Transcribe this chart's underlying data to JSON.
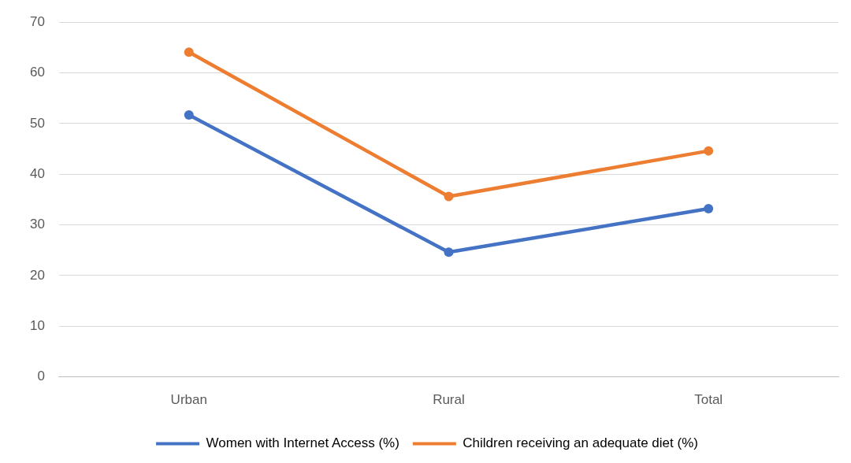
{
  "chart_data": {
    "type": "line",
    "categories": [
      "Urban",
      "Rural",
      "Total"
    ],
    "series": [
      {
        "name": "Women with Internet Access (%)",
        "color": "#4472c4",
        "values": [
          51.7,
          24.6,
          33.2
        ]
      },
      {
        "name": "Children receiving an adequate diet (%)",
        "color": "#ed7d31",
        "values": [
          64.1,
          35.6,
          44.6
        ]
      }
    ],
    "ylim": [
      0,
      70
    ],
    "yticks": [
      0,
      10,
      20,
      30,
      40,
      50,
      60,
      70
    ],
    "grid": "y",
    "legend": "bottom",
    "marker": "circle",
    "line_style": "solid"
  }
}
